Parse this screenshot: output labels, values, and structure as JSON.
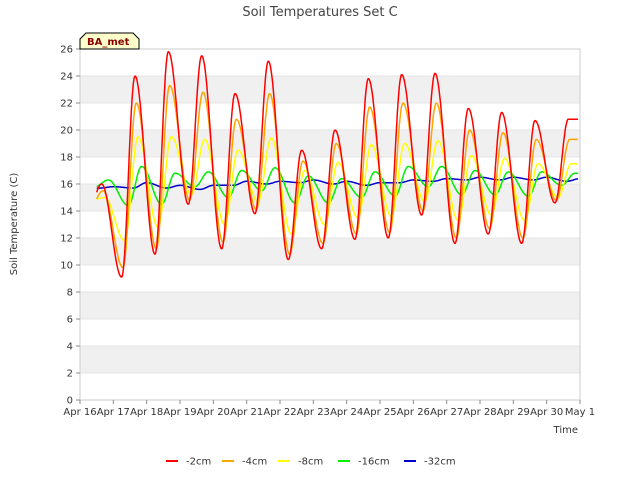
{
  "chart_data": {
    "type": "line",
    "title": "Soil Temperatures Set C",
    "xlabel": "Time",
    "ylabel": "Soil Temperature (C)",
    "ylim": [
      0,
      26
    ],
    "yticks": [
      0,
      2,
      4,
      6,
      8,
      10,
      12,
      14,
      16,
      18,
      20,
      22,
      24,
      26
    ],
    "xlim": [
      0,
      15
    ],
    "xticks": [
      0,
      1,
      2,
      3,
      4,
      5,
      6,
      7,
      8,
      9,
      10,
      11,
      12,
      13,
      14,
      15
    ],
    "xtick_labels": [
      "Apr 16",
      "Apr 17",
      "Apr 18",
      "Apr 19",
      "Apr 20",
      "Apr 21",
      "Apr 22",
      "Apr 23",
      "Apr 24",
      "Apr 25",
      "Apr 26",
      "Apr 27",
      "Apr 28",
      "Apr 29",
      "Apr 30",
      "May 1"
    ],
    "x_unit_note": "x values are days since Apr 16",
    "grid": "horizontal bands",
    "legend_placement": "bottom",
    "badge": {
      "text": "BA_met",
      "bg": "#ffffcc",
      "border": "#000000",
      "color": "#8b0000"
    },
    "daily_max": {
      "-2cm": [
        16.0,
        24.0,
        25.8,
        25.5,
        22.7,
        25.1,
        18.5,
        20.0,
        23.8,
        24.1,
        24.2,
        21.6,
        21.3,
        20.7,
        20.8
      ],
      "-4cm": [
        15.5,
        22.0,
        23.3,
        22.8,
        20.8,
        22.7,
        17.7,
        19.0,
        21.7,
        22.0,
        22.0,
        20.0,
        19.8,
        19.3,
        19.3
      ],
      "-8cm": [
        15.0,
        19.5,
        19.5,
        19.3,
        18.5,
        19.4,
        17.0,
        17.6,
        18.9,
        19.0,
        19.2,
        18.1,
        17.9,
        17.5,
        17.5
      ],
      "-16cm": [
        16.3,
        17.3,
        16.8,
        16.9,
        17.0,
        17.2,
        16.6,
        16.4,
        16.9,
        17.3,
        17.3,
        17.0,
        16.9,
        16.9,
        16.8
      ],
      "-32cm": [
        15.8,
        16.1,
        15.9,
        15.9,
        16.2,
        16.2,
        16.3,
        16.2,
        16.1,
        16.3,
        16.4,
        16.5,
        16.5,
        16.5,
        16.4
      ]
    },
    "daily_min": {
      "-2cm": [
        14.0,
        9.1,
        10.8,
        14.5,
        11.2,
        13.8,
        10.4,
        11.2,
        11.9,
        12.0,
        13.7,
        11.6,
        12.3,
        11.6,
        14.6
      ],
      "-4cm": [
        14.2,
        9.8,
        11.2,
        14.8,
        11.7,
        14.1,
        10.8,
        11.6,
        12.3,
        12.4,
        14.0,
        12.0,
        12.7,
        12.0,
        14.8
      ],
      "-8cm": [
        14.8,
        11.8,
        12.8,
        15.2,
        13.0,
        14.7,
        12.3,
        13.0,
        13.5,
        13.6,
        14.7,
        13.3,
        13.7,
        13.3,
        15.0
      ],
      "-16cm": [
        15.8,
        14.4,
        14.5,
        15.8,
        15.0,
        15.5,
        14.6,
        14.6,
        15.0,
        15.1,
        15.8,
        15.2,
        15.2,
        15.1,
        15.9
      ],
      "-32cm": [
        15.7,
        15.7,
        15.7,
        15.6,
        15.9,
        16.0,
        16.1,
        16.0,
        15.9,
        16.1,
        16.2,
        16.3,
        16.3,
        16.3,
        16.2
      ]
    },
    "series": [
      {
        "name": "-2cm",
        "color": "#ff0000"
      },
      {
        "name": "-4cm",
        "color": "#ffa500"
      },
      {
        "name": "-8cm",
        "color": "#ffff00"
      },
      {
        "name": "-16cm",
        "color": "#00ee00"
      },
      {
        "name": "-32cm",
        "color": "#0000cc"
      }
    ]
  }
}
